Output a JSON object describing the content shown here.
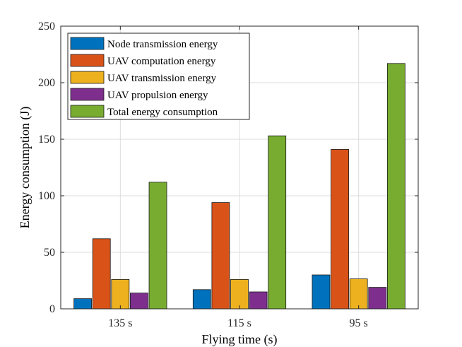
{
  "chart_data": {
    "type": "bar",
    "title": "",
    "xlabel": "Flying time (s)",
    "ylabel": "Energy consumption (J)",
    "categories": [
      "135 s",
      "115 s",
      "95 s"
    ],
    "ylim": [
      0,
      250
    ],
    "yticks": [
      0,
      50,
      100,
      150,
      200,
      250
    ],
    "grid": true,
    "legend_position": "top-left",
    "series": [
      {
        "name": "Node transmission energy",
        "color": "#0072BD",
        "values": [
          9,
          17,
          30
        ]
      },
      {
        "name": "UAV computation energy",
        "color": "#D95319",
        "values": [
          62,
          94,
          141
        ]
      },
      {
        "name": "UAV transmission energy",
        "color": "#EDB120",
        "values": [
          26,
          26,
          26.5
        ]
      },
      {
        "name": "UAV propulsion energy",
        "color": "#7E2F8E",
        "values": [
          14,
          15,
          19
        ]
      },
      {
        "name": "Total energy consumption",
        "color": "#77AC30",
        "values": [
          112,
          153,
          217
        ]
      }
    ]
  }
}
